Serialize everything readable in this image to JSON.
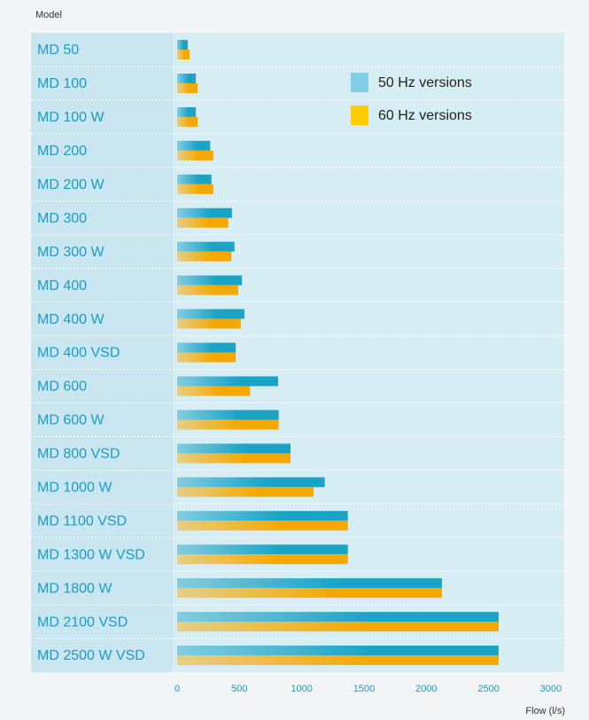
{
  "chart_data": {
    "type": "barh",
    "ylabel": "Model",
    "xlabel": "Flow (l/s)",
    "categories": [
      "MD 50",
      "MD 100",
      "MD 100 W",
      "MD 200",
      "MD 200 W",
      "MD 300",
      "MD 300 W",
      "MD 400",
      "MD 400 W",
      "MD 400 VSD",
      "MD 600",
      "MD 600 W",
      "MD 800 VSD",
      "MD 1000 W",
      "MD 1100 VSD",
      "MD 1300 W VSD",
      "MD 1800 W",
      "MD 2100 VSD",
      "MD 2500 W VSD"
    ],
    "series": [
      {
        "name": "50 Hz versions",
        "color": "#1ba3c6",
        "values": [
          85,
          150,
          150,
          265,
          275,
          440,
          460,
          520,
          540,
          470,
          810,
          815,
          910,
          1185,
          1370,
          1370,
          2125,
          2580,
          2580
        ]
      },
      {
        "name": "60 Hz versions",
        "color": "#f5a800",
        "values": [
          100,
          165,
          165,
          290,
          290,
          410,
          435,
          490,
          510,
          470,
          585,
          815,
          910,
          1095,
          1370,
          1370,
          2125,
          2580,
          2580
        ]
      }
    ],
    "legend_colors": [
      "#7fcde6",
      "#ffcc00"
    ],
    "xlim": [
      0,
      3000
    ],
    "xticks": [
      0,
      500,
      1000,
      1500,
      2000,
      2500,
      3000
    ],
    "legend": "upper right"
  }
}
